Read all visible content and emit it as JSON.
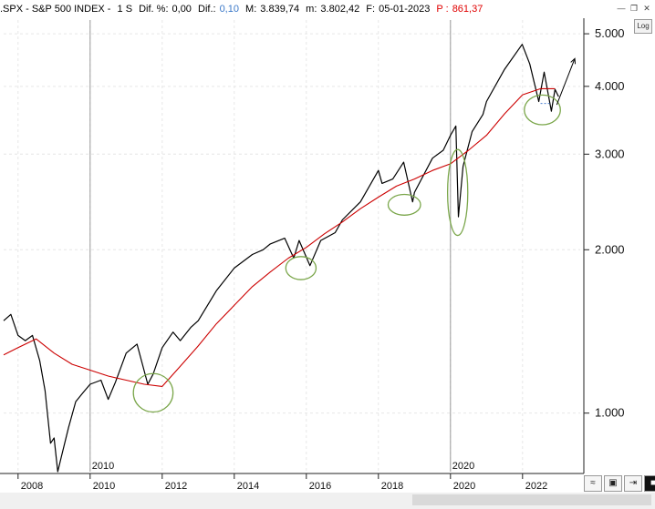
{
  "header": {
    "symbol": ".SPX - S&P 500 INDEX -",
    "timeframe": "1 S",
    "dif_pct_label": "Dif. %:",
    "dif_pct_value": "0,00",
    "dif_label": "Dif.:",
    "dif_value": "0,10",
    "max_label": "M:",
    "max_value": "3.839,74",
    "min_label": "m:",
    "min_value": "3.802,42",
    "date_label": "F:",
    "date_value": "05-01-2023",
    "p_label": "P :",
    "p_value": "861,37"
  },
  "controls": {
    "log_button": "Log"
  },
  "colors": {
    "price_line": "#000000",
    "moving_average": "#cc0000",
    "ellipse": "#7aa64a",
    "arrow": "#000000"
  },
  "chart_data": {
    "type": "line",
    "y_scale": "log",
    "ylim": [
      780,
      5300
    ],
    "xlim": [
      2007.6,
      2023.6
    ],
    "y_ticks": [
      1000,
      2000,
      3000,
      4000,
      5000
    ],
    "y_tick_labels": [
      "1.000",
      "2.000",
      "3.000",
      "4.000",
      "5.000"
    ],
    "x_ticks": [
      2008,
      2010,
      2012,
      2014,
      2016,
      2018,
      2020,
      2022
    ],
    "x_tick_labels": [
      "2008",
      "2010",
      "2012",
      "2014",
      "2016",
      "2018",
      "2020",
      "2022"
    ],
    "x_markers": [
      {
        "x": 2010,
        "label": "2010"
      },
      {
        "x": 2020,
        "label": "2020"
      }
    ],
    "series": [
      {
        "style": "price",
        "x": [
          2007.6,
          2007.8,
          2008.0,
          2008.2,
          2008.4,
          2008.6,
          2008.75,
          2008.9,
          2009.0,
          2009.1,
          2009.2,
          2009.4,
          2009.6,
          2009.8,
          2010.0,
          2010.3,
          2010.5,
          2010.7,
          2011.0,
          2011.3,
          2011.6,
          2011.75,
          2012.0,
          2012.3,
          2012.5,
          2012.8,
          2013.0,
          2013.5,
          2014.0,
          2014.5,
          2014.8,
          2015.0,
          2015.4,
          2015.65,
          2015.8,
          2016.1,
          2016.4,
          2016.8,
          2017.0,
          2017.5,
          2018.0,
          2018.1,
          2018.4,
          2018.7,
          2018.95,
          2019.0,
          2019.5,
          2019.8,
          2020.0,
          2020.15,
          2020.22,
          2020.35,
          2020.6,
          2020.9,
          2021.0,
          2021.5,
          2021.99,
          2022.2,
          2022.45,
          2022.6,
          2022.8,
          2022.9,
          2023.0
        ],
        "y": [
          1480,
          1520,
          1390,
          1360,
          1390,
          1250,
          1100,
          880,
          900,
          780,
          830,
          940,
          1050,
          1090,
          1130,
          1150,
          1060,
          1140,
          1290,
          1340,
          1130,
          1180,
          1320,
          1410,
          1360,
          1440,
          1480,
          1680,
          1850,
          1960,
          2000,
          2050,
          2100,
          1930,
          2080,
          1870,
          2080,
          2150,
          2270,
          2450,
          2800,
          2650,
          2700,
          2900,
          2450,
          2550,
          2950,
          3050,
          3250,
          3380,
          2300,
          2850,
          3300,
          3550,
          3750,
          4300,
          4780,
          4400,
          3750,
          4250,
          3600,
          3950,
          3830
        ]
      },
      {
        "style": "ma",
        "x": [
          2007.6,
          2008.0,
          2008.5,
          2009.0,
          2009.5,
          2010.0,
          2010.5,
          2011.0,
          2011.5,
          2012.0,
          2012.5,
          2013.0,
          2013.5,
          2014.0,
          2014.5,
          2015.0,
          2015.5,
          2016.0,
          2016.5,
          2017.0,
          2017.5,
          2018.0,
          2018.5,
          2019.0,
          2019.5,
          2020.0,
          2020.5,
          2021.0,
          2021.5,
          2022.0,
          2022.5,
          2022.9
        ],
        "y": [
          1280,
          1320,
          1370,
          1290,
          1230,
          1200,
          1170,
          1150,
          1130,
          1120,
          1220,
          1330,
          1460,
          1580,
          1710,
          1820,
          1930,
          2020,
          2140,
          2250,
          2380,
          2500,
          2620,
          2700,
          2800,
          2880,
          3050,
          3250,
          3560,
          3860,
          3960,
          3960
        ]
      }
    ]
  },
  "annotations": {
    "ellipses": [
      {
        "cx": 2011.75,
        "cy": 1090,
        "rx": 0.55,
        "ry_factor": 1.085
      },
      {
        "cx": 2015.85,
        "cy": 1850,
        "rx": 0.42,
        "ry_factor": 1.05
      },
      {
        "cx": 2018.72,
        "cy": 2420,
        "rx": 0.45,
        "ry_factor": 1.045
      },
      {
        "cx": 2020.2,
        "cy": 2550,
        "rx": 0.28,
        "ry_factor": 1.2
      },
      {
        "cx": 2022.55,
        "cy": 3620,
        "rx": 0.5,
        "ry_factor": 1.065
      }
    ],
    "arrow": {
      "x1": 2022.95,
      "y1": 3700,
      "x2": 2023.45,
      "y2": 4500
    },
    "dashes": {
      "x1": 2022.5,
      "x2": 2022.8,
      "y": 3720
    }
  }
}
